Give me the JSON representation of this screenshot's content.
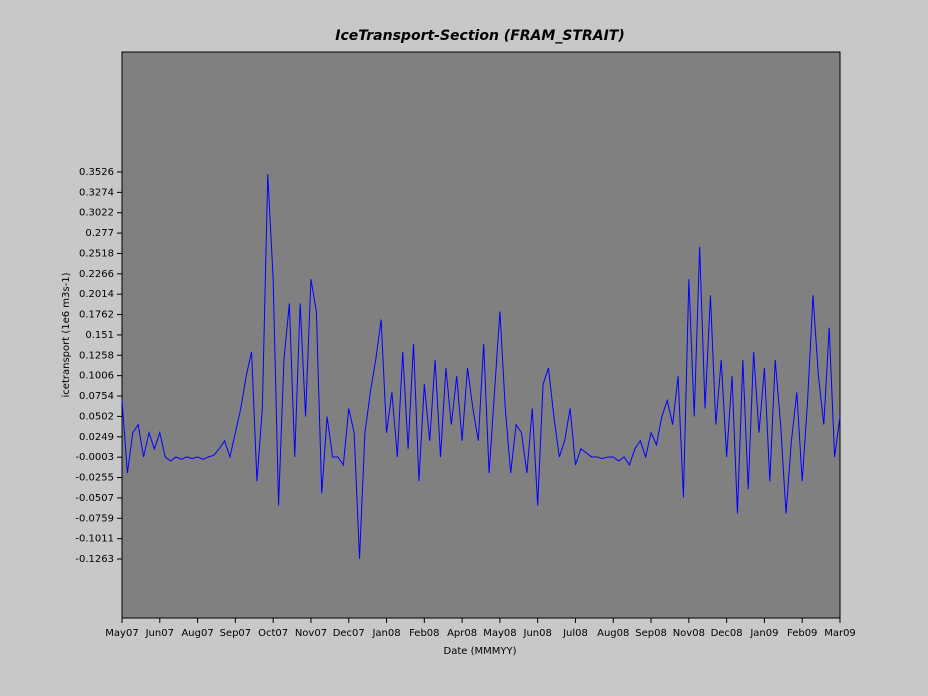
{
  "chart_data": {
    "type": "line",
    "title": "IceTransport-Section (FRAM_STRAIT)",
    "x_label": "Date (MMMYY)",
    "y_label": "icetransport (1e6 m3s-1)",
    "color": "#0000ff",
    "x": [
      0,
      5,
      10,
      15,
      20,
      25,
      30,
      35,
      40,
      45,
      50,
      55,
      60,
      65,
      70,
      75,
      80,
      85,
      90,
      95,
      100,
      105,
      110,
      115,
      120,
      125,
      130,
      135,
      140,
      145,
      150,
      155,
      160,
      165,
      170,
      175,
      180,
      185,
      190,
      195,
      200,
      205,
      210,
      215,
      220,
      225,
      230,
      235,
      240,
      245,
      250,
      255,
      260,
      265,
      270,
      275,
      280,
      285,
      290,
      295,
      300,
      305,
      310,
      315,
      320,
      325,
      330,
      335,
      340,
      345,
      350,
      355,
      360,
      365,
      370,
      375,
      380,
      385,
      390,
      395,
      400,
      405,
      410,
      415,
      420,
      425,
      430,
      435,
      440,
      445,
      450,
      455,
      460,
      465,
      470,
      475,
      480,
      485,
      490,
      495,
      500,
      505,
      510,
      515,
      520,
      525,
      530,
      535,
      540,
      545,
      550,
      555,
      560,
      565,
      570,
      575,
      580,
      585,
      590,
      595,
      600,
      605,
      610,
      615,
      620,
      625,
      630,
      635,
      640,
      645,
      650,
      655,
      660,
      665
    ],
    "values": [
      0.07,
      -0.02,
      0.03,
      0.04,
      0.0,
      0.03,
      0.01,
      0.03,
      0.0,
      -0.005,
      0.0,
      -0.003,
      0.0,
      -0.002,
      0.0,
      -0.003,
      0.0,
      0.002,
      0.01,
      0.02,
      0.0,
      0.03,
      0.06,
      0.1,
      0.13,
      -0.03,
      0.06,
      0.35,
      0.22,
      -0.06,
      0.12,
      0.19,
      0.0,
      0.19,
      0.05,
      0.22,
      0.18,
      -0.045,
      0.05,
      0.0,
      0.0,
      -0.01,
      0.06,
      0.03,
      -0.126,
      0.03,
      0.08,
      0.12,
      0.17,
      0.03,
      0.08,
      0.0,
      0.13,
      0.01,
      0.14,
      -0.03,
      0.09,
      0.02,
      0.12,
      0.0,
      0.11,
      0.04,
      0.1,
      0.02,
      0.11,
      0.06,
      0.02,
      0.14,
      -0.02,
      0.08,
      0.18,
      0.06,
      -0.02,
      0.04,
      0.03,
      -0.02,
      0.06,
      -0.06,
      0.09,
      0.11,
      0.05,
      0.0,
      0.02,
      0.06,
      -0.01,
      0.01,
      0.005,
      0.0,
      0.0,
      -0.002,
      0.0,
      0.0,
      -0.005,
      0.0,
      -0.01,
      0.01,
      0.02,
      0.0,
      0.03,
      0.015,
      0.05,
      0.07,
      0.04,
      0.1,
      -0.05,
      0.22,
      0.05,
      0.26,
      0.06,
      0.2,
      0.04,
      0.12,
      0.0,
      0.1,
      -0.07,
      0.12,
      -0.04,
      0.13,
      0.03,
      0.11,
      -0.03,
      0.12,
      0.04,
      -0.07,
      0.02,
      0.08,
      -0.03,
      0.07,
      0.2,
      0.1,
      0.04,
      0.16,
      0.0,
      0.05
    ],
    "xlim": [
      0,
      665
    ],
    "xticks": [
      {
        "value": 0,
        "label": "May07"
      },
      {
        "value": 35,
        "label": "Jun07"
      },
      {
        "value": 70,
        "label": "Aug07"
      },
      {
        "value": 105,
        "label": "Sep07"
      },
      {
        "value": 140,
        "label": "Oct07"
      },
      {
        "value": 175,
        "label": "Nov07"
      },
      {
        "value": 210,
        "label": "Dec07"
      },
      {
        "value": 245,
        "label": "Jan08"
      },
      {
        "value": 280,
        "label": "Feb08"
      },
      {
        "value": 315,
        "label": "Apr08"
      },
      {
        "value": 350,
        "label": "May08"
      },
      {
        "value": 385,
        "label": "Jun08"
      },
      {
        "value": 420,
        "label": "Jul08"
      },
      {
        "value": 455,
        "label": "Aug08"
      },
      {
        "value": 490,
        "label": "Sep08"
      },
      {
        "value": 525,
        "label": "Nov08"
      },
      {
        "value": 560,
        "label": "Dec08"
      },
      {
        "value": 595,
        "label": "Jan09"
      },
      {
        "value": 630,
        "label": "Feb09"
      },
      {
        "value": 665,
        "label": "Mar09"
      }
    ],
    "ylim": [
      -0.1993,
      0.5011
    ],
    "yticks": [
      -0.1263,
      -0.1011,
      -0.0759,
      -0.0507,
      -0.0255,
      -0.0003,
      0.0249,
      0.0502,
      0.0754,
      0.1006,
      0.1258,
      0.151,
      0.1762,
      0.2014,
      0.2266,
      0.2518,
      0.277,
      0.3022,
      0.3274,
      0.3526
    ],
    "grid": false
  }
}
